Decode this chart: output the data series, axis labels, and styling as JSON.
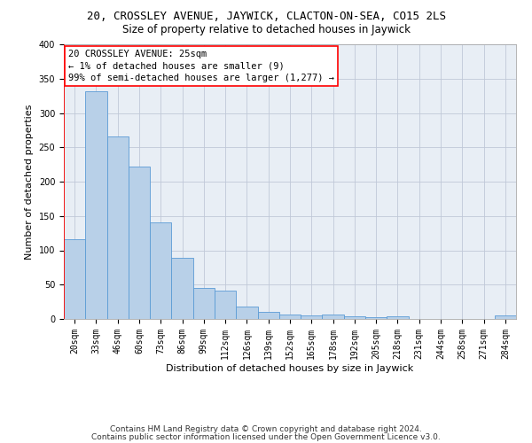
{
  "title": "20, CROSSLEY AVENUE, JAYWICK, CLACTON-ON-SEA, CO15 2LS",
  "subtitle": "Size of property relative to detached houses in Jaywick",
  "xlabel": "Distribution of detached houses by size in Jaywick",
  "ylabel": "Number of detached properties",
  "categories": [
    "20sqm",
    "33sqm",
    "46sqm",
    "60sqm",
    "73sqm",
    "86sqm",
    "99sqm",
    "112sqm",
    "126sqm",
    "139sqm",
    "152sqm",
    "165sqm",
    "178sqm",
    "192sqm",
    "205sqm",
    "218sqm",
    "231sqm",
    "244sqm",
    "258sqm",
    "271sqm",
    "284sqm"
  ],
  "values": [
    116,
    332,
    266,
    222,
    141,
    89,
    45,
    41,
    18,
    10,
    7,
    5,
    7,
    4,
    3,
    4,
    0,
    0,
    0,
    0,
    5
  ],
  "bar_color": "#b8d0e8",
  "bar_edge_color": "#5b9bd5",
  "annotation_box_text": "20 CROSSLEY AVENUE: 25sqm\n← 1% of detached houses are smaller (9)\n99% of semi-detached houses are larger (1,277) →",
  "ylim": [
    0,
    400
  ],
  "yticks": [
    0,
    50,
    100,
    150,
    200,
    250,
    300,
    350,
    400
  ],
  "footer1": "Contains HM Land Registry data © Crown copyright and database right 2024.",
  "footer2": "Contains public sector information licensed under the Open Government Licence v3.0.",
  "bg_color": "#ffffff",
  "plot_bg_color": "#e8eef5",
  "grid_color": "#c0c8d8",
  "title_fontsize": 9,
  "subtitle_fontsize": 8.5,
  "axis_label_fontsize": 8,
  "tick_fontsize": 7,
  "annotation_fontsize": 7.5,
  "footer_fontsize": 6.5
}
